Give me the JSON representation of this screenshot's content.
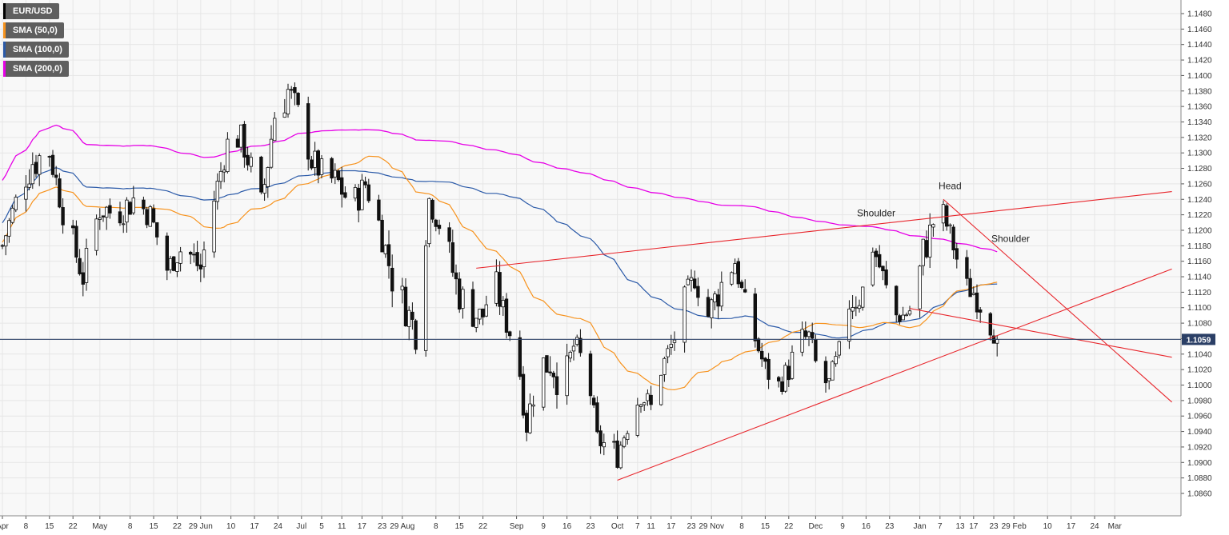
{
  "legend": {
    "items": [
      {
        "label": "EUR/USD",
        "color": "#000000"
      },
      {
        "label": "SMA (50,0)",
        "color": "#f7931e"
      },
      {
        "label": "SMA (100,0)",
        "color": "#2b5aa8"
      },
      {
        "label": "SMA (200,0)",
        "color": "#e600e6"
      }
    ]
  },
  "chart_data": {
    "type": "candlestick",
    "symbol": "EUR/USD",
    "current_price": "1.1059",
    "y_ticks": [
      "1.0860",
      "1.0880",
      "1.0900",
      "1.0920",
      "1.0940",
      "1.0960",
      "1.0980",
      "1.1000",
      "1.1020",
      "1.1040",
      "1.1060",
      "1.1080",
      "1.1100",
      "1.1120",
      "1.1140",
      "1.1160",
      "1.1180",
      "1.1200",
      "1.1220",
      "1.1240",
      "1.1260",
      "1.1280",
      "1.1300",
      "1.1320",
      "1.1340",
      "1.1360",
      "1.1380",
      "1.1400",
      "1.1420",
      "1.1440",
      "1.1460",
      "1.1480"
    ],
    "ylim": [
      1.0852,
      1.1488
    ],
    "x_ticks": [
      "Apr",
      "8",
      "15",
      "22",
      "May",
      "8",
      "15",
      "22",
      "29 Jun",
      "10",
      "17",
      "24",
      "Jul",
      "5",
      "11",
      "17",
      "23",
      "29 Aug",
      "8",
      "15",
      "22",
      "Sep",
      "9",
      "16",
      "23",
      "Oct",
      "7",
      "11",
      "17",
      "23",
      "29 Nov",
      "8",
      "15",
      "22",
      "Dec",
      "9",
      "16",
      "23",
      "Jan",
      "7",
      "13",
      "17",
      "23",
      "29 Feb",
      "10",
      "17",
      "24",
      "Mar"
    ],
    "x_tick_days": [
      0,
      7,
      14,
      21,
      29,
      38,
      45,
      52,
      59,
      68,
      75,
      82,
      89,
      95,
      101,
      107,
      113,
      119,
      129,
      136,
      143,
      153,
      161,
      168,
      175,
      183,
      189,
      193,
      199,
      205,
      211,
      220,
      227,
      234,
      242,
      250,
      257,
      264,
      273,
      279,
      285,
      289,
      295,
      301,
      311,
      318,
      325,
      331
    ],
    "last_day": 296,
    "annotations": {
      "head": {
        "label": "Head",
        "day": 282,
        "price": 1.1253
      },
      "left_shoulder": {
        "label": "Shoulder",
        "day": 260,
        "price": 1.1218
      },
      "right_shoulder": {
        "label": "Shoulder",
        "day": 300,
        "price": 1.1185
      }
    },
    "trendlines": [
      {
        "name": "upper-channel",
        "from": [
          141,
          1.1151
        ],
        "to": [
          348,
          1.125
        ]
      },
      {
        "name": "ascending-support",
        "from": [
          183,
          1.0877
        ],
        "to": [
          348,
          1.115
        ]
      },
      {
        "name": "descending-resistance",
        "from": [
          280,
          1.124
        ],
        "to": [
          348,
          1.0978
        ]
      },
      {
        "name": "neckline",
        "from": [
          270,
          1.1099
        ],
        "to": [
          348,
          1.1036
        ]
      }
    ],
    "pivots": [
      [
        0,
        1.118,
        1.121,
        1.116
      ],
      [
        4,
        1.124,
        1.124,
        1.123
      ],
      [
        9,
        1.129,
        1.133,
        1.125
      ],
      [
        14,
        1.13,
        1.132,
        1.128
      ],
      [
        19,
        1.121,
        1.123,
        1.117
      ],
      [
        24,
        1.114,
        1.116,
        1.111
      ],
      [
        29,
        1.123,
        1.127,
        1.121
      ],
      [
        34,
        1.122,
        1.123,
        1.119
      ],
      [
        39,
        1.124,
        1.127,
        1.121
      ],
      [
        44,
        1.122,
        1.123,
        1.119
      ],
      [
        49,
        1.115,
        1.117,
        1.113
      ],
      [
        54,
        1.118,
        1.12,
        1.117
      ],
      [
        59,
        1.115,
        1.118,
        1.112
      ],
      [
        63,
        1.124,
        1.126,
        1.122
      ],
      [
        68,
        1.133,
        1.135,
        1.131
      ],
      [
        72,
        1.131,
        1.133,
        1.127
      ],
      [
        77,
        1.123,
        1.126,
        1.12
      ],
      [
        81,
        1.135,
        1.139,
        1.132
      ],
      [
        85,
        1.138,
        1.141,
        1.134
      ],
      [
        89,
        1.134,
        1.136,
        1.132
      ],
      [
        92,
        1.129,
        1.131,
        1.126
      ],
      [
        96,
        1.127,
        1.129,
        1.125
      ],
      [
        100,
        1.126,
        1.128,
        1.122
      ],
      [
        104,
        1.123,
        1.126,
        1.12
      ],
      [
        108,
        1.126,
        1.128,
        1.124
      ],
      [
        112,
        1.121,
        1.123,
        1.119
      ],
      [
        116,
        1.114,
        1.118,
        1.111
      ],
      [
        120,
        1.11,
        1.112,
        1.106
      ],
      [
        123,
        1.107,
        1.109,
        1.103
      ],
      [
        127,
        1.124,
        1.125,
        1.121
      ],
      [
        131,
        1.12,
        1.122,
        1.117
      ],
      [
        135,
        1.113,
        1.118,
        1.11
      ],
      [
        139,
        1.109,
        1.111,
        1.107
      ],
      [
        143,
        1.109,
        1.111,
        1.107
      ],
      [
        146,
        1.114,
        1.115,
        1.109
      ],
      [
        150,
        1.108,
        1.11,
        1.106
      ],
      [
        153,
        1.105,
        1.107,
        1.101
      ],
      [
        156,
        1.095,
        1.098,
        1.093
      ],
      [
        159,
        1.101,
        1.104,
        1.099
      ],
      [
        163,
        1.104,
        1.107,
        1.095
      ],
      [
        167,
        1.1,
        1.102,
        1.096
      ],
      [
        170,
        1.105,
        1.108,
        1.103
      ],
      [
        174,
        1.102,
        1.104,
        1.1
      ],
      [
        177,
        1.093,
        1.095,
        1.092
      ],
      [
        180,
        1.092,
        1.095,
        1.09
      ],
      [
        183,
        1.091,
        1.093,
        1.089
      ],
      [
        186,
        1.095,
        1.097,
        1.093
      ],
      [
        190,
        1.099,
        1.101,
        1.097
      ],
      [
        193,
        1.097,
        1.1,
        1.096
      ],
      [
        196,
        1.102,
        1.104,
        1.101
      ],
      [
        199,
        1.105,
        1.108,
        1.104
      ],
      [
        203,
        1.11,
        1.116,
        1.109
      ],
      [
        206,
        1.114,
        1.117,
        1.113
      ],
      [
        210,
        1.109,
        1.112,
        1.107
      ],
      [
        214,
        1.113,
        1.116,
        1.11
      ],
      [
        218,
        1.116,
        1.117,
        1.114
      ],
      [
        221,
        1.11,
        1.112,
        1.107
      ],
      [
        224,
        1.106,
        1.108,
        1.104
      ],
      [
        227,
        1.102,
        1.104,
        1.1
      ],
      [
        231,
        1.1,
        1.102,
        1.099
      ],
      [
        234,
        1.102,
        1.104,
        1.1
      ],
      [
        237,
        1.106,
        1.108,
        1.105
      ],
      [
        240,
        1.106,
        1.108,
        1.103
      ],
      [
        243,
        1.101,
        1.103,
        1.099
      ],
      [
        246,
        1.1,
        1.102,
        1.098
      ],
      [
        249,
        1.104,
        1.106,
        1.102
      ],
      [
        252,
        1.111,
        1.114,
        1.107
      ],
      [
        256,
        1.112,
        1.116,
        1.109
      ],
      [
        259,
        1.118,
        1.12,
        1.116
      ],
      [
        262,
        1.114,
        1.116,
        1.112
      ],
      [
        265,
        1.109,
        1.111,
        1.108
      ],
      [
        268,
        1.109,
        1.11,
        1.107
      ],
      [
        271,
        1.11,
        1.112,
        1.108
      ],
      [
        274,
        1.117,
        1.121,
        1.114
      ],
      [
        277,
        1.121,
        1.123,
        1.119
      ],
      [
        280,
        1.122,
        1.124,
        1.12
      ],
      [
        283,
        1.118,
        1.12,
        1.116
      ],
      [
        286,
        1.113,
        1.115,
        1.112
      ],
      [
        289,
        1.112,
        1.113,
        1.109
      ],
      [
        292,
        1.11,
        1.111,
        1.106
      ],
      [
        296,
        1.106,
        1.107,
        1.104
      ]
    ]
  }
}
